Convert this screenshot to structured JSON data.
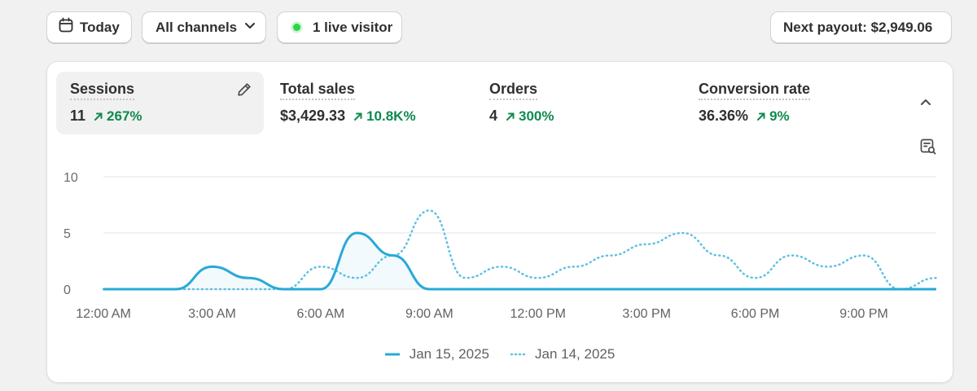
{
  "toolbar": {
    "today_label": "Today",
    "channels_label": "All channels",
    "live_label": "1 live visitor",
    "payout_label": "Next payout: $2,949.06"
  },
  "metrics": [
    {
      "title": "Sessions",
      "value": "11",
      "change": "267%",
      "active": true
    },
    {
      "title": "Total sales",
      "value": "$3,429.33",
      "change": "10.8K%"
    },
    {
      "title": "Orders",
      "value": "4",
      "change": "300%"
    },
    {
      "title": "Conversion rate",
      "value": "36.36%",
      "change": "9%"
    }
  ],
  "colors": {
    "accent": "#29a9d6",
    "positive": "#0f8a4f",
    "live_dot": "#2fd449"
  },
  "icons": [
    "calendar-icon",
    "chevron-down-icon",
    "live-dot-icon",
    "pencil-icon",
    "chevron-up-icon",
    "analyze-report-icon",
    "arrow-up-right-icon"
  ],
  "chart_data": {
    "type": "line",
    "ylim": [
      0,
      10
    ],
    "yticks": [
      "0",
      "5",
      "10"
    ],
    "x": [
      "12:00 AM",
      "1:00 AM",
      "2:00 AM",
      "3:00 AM",
      "4:00 AM",
      "5:00 AM",
      "6:00 AM",
      "7:00 AM",
      "8:00 AM",
      "9:00 AM",
      "10:00 AM",
      "11:00 AM",
      "12:00 PM",
      "1:00 PM",
      "2:00 PM",
      "3:00 PM",
      "4:00 PM",
      "5:00 PM",
      "6:00 PM",
      "7:00 PM",
      "8:00 PM",
      "9:00 PM",
      "10:00 PM",
      "11:00 PM"
    ],
    "xticks": [
      "12:00 AM",
      "3:00 AM",
      "6:00 AM",
      "9:00 AM",
      "12:00 PM",
      "3:00 PM",
      "6:00 PM",
      "9:00 PM"
    ],
    "grid": true,
    "legend_position": "bottom-center",
    "series": [
      {
        "name": "Jan 15, 2025",
        "style": "solid",
        "values": [
          0,
          0,
          0,
          2,
          1,
          0,
          0,
          5,
          3,
          0,
          0,
          0,
          0,
          0,
          0,
          0,
          0,
          0,
          0,
          0,
          0,
          0,
          0,
          0
        ]
      },
      {
        "name": "Jan 14, 2025",
        "style": "dotted",
        "values": [
          0,
          0,
          0,
          0,
          0,
          0,
          2,
          1,
          3,
          7,
          1,
          2,
          1,
          2,
          3,
          4,
          5,
          3,
          1,
          3,
          2,
          3,
          0,
          1
        ]
      }
    ]
  }
}
